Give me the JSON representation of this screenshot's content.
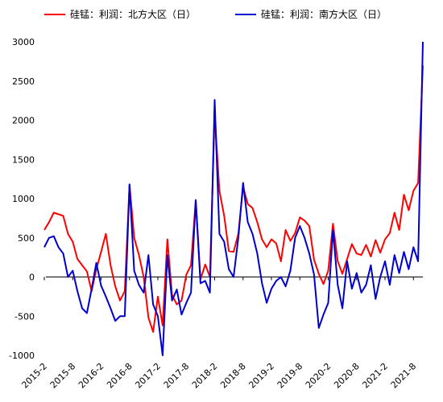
{
  "chart_data": {
    "type": "line",
    "title": "",
    "xlabel": "",
    "ylabel": "",
    "ylim": [
      -1000,
      3000
    ],
    "yticks": [
      -1000,
      -500,
      0,
      500,
      1000,
      1500,
      2000,
      2500,
      3000
    ],
    "xlim": [
      "2015-02",
      "2021-10"
    ],
    "xticks": [
      "2015-2",
      "2015-8",
      "2016-2",
      "2016-8",
      "2017-2",
      "2017-8",
      "2018-2",
      "2018-8",
      "2019-2",
      "2019-8",
      "2020-2",
      "2020-8",
      "2021-2",
      "2021-8"
    ],
    "grid": false,
    "legend_position": "top",
    "series": [
      {
        "name": "硅锰：利润：北方大区（日）",
        "color": "#ff0000",
        "points": [
          [
            "2015-02",
            600
          ],
          [
            "2015-03",
            700
          ],
          [
            "2015-04",
            820
          ],
          [
            "2015-05",
            800
          ],
          [
            "2015-06",
            780
          ],
          [
            "2015-07",
            550
          ],
          [
            "2015-08",
            450
          ],
          [
            "2015-09",
            230
          ],
          [
            "2015-10",
            150
          ],
          [
            "2015-11",
            70
          ],
          [
            "2015-12",
            -180
          ],
          [
            "2016-01",
            100
          ],
          [
            "2016-02",
            320
          ],
          [
            "2016-03",
            550
          ],
          [
            "2016-04",
            150
          ],
          [
            "2016-05",
            -120
          ],
          [
            "2016-06",
            -300
          ],
          [
            "2016-07",
            -180
          ],
          [
            "2016-08",
            1180
          ],
          [
            "2016-09",
            500
          ],
          [
            "2016-10",
            280
          ],
          [
            "2016-11",
            0
          ],
          [
            "2016-12",
            -520
          ],
          [
            "2017-01",
            -700
          ],
          [
            "2017-02",
            -250
          ],
          [
            "2017-03",
            -620
          ],
          [
            "2017-04",
            480
          ],
          [
            "2017-05",
            -230
          ],
          [
            "2017-06",
            -350
          ],
          [
            "2017-07",
            -300
          ],
          [
            "2017-08",
            30
          ],
          [
            "2017-09",
            150
          ],
          [
            "2017-10",
            980
          ],
          [
            "2017-11",
            -30
          ],
          [
            "2017-12",
            160
          ],
          [
            "2018-01",
            0
          ],
          [
            "2018-02",
            2080
          ],
          [
            "2018-03",
            1100
          ],
          [
            "2018-04",
            780
          ],
          [
            "2018-05",
            330
          ],
          [
            "2018-06",
            320
          ],
          [
            "2018-07",
            550
          ],
          [
            "2018-08",
            1150
          ],
          [
            "2018-09",
            930
          ],
          [
            "2018-10",
            880
          ],
          [
            "2018-11",
            700
          ],
          [
            "2018-12",
            480
          ],
          [
            "2019-01",
            380
          ],
          [
            "2019-02",
            480
          ],
          [
            "2019-03",
            430
          ],
          [
            "2019-04",
            200
          ],
          [
            "2019-05",
            600
          ],
          [
            "2019-06",
            460
          ],
          [
            "2019-07",
            560
          ],
          [
            "2019-08",
            760
          ],
          [
            "2019-09",
            720
          ],
          [
            "2019-10",
            650
          ],
          [
            "2019-11",
            220
          ],
          [
            "2019-12",
            40
          ],
          [
            "2020-01",
            -90
          ],
          [
            "2020-02",
            80
          ],
          [
            "2020-03",
            680
          ],
          [
            "2020-04",
            200
          ],
          [
            "2020-05",
            40
          ],
          [
            "2020-06",
            230
          ],
          [
            "2020-07",
            420
          ],
          [
            "2020-08",
            300
          ],
          [
            "2020-09",
            280
          ],
          [
            "2020-10",
            410
          ],
          [
            "2020-11",
            260
          ],
          [
            "2020-12",
            470
          ],
          [
            "2021-01",
            310
          ],
          [
            "2021-02",
            480
          ],
          [
            "2021-03",
            560
          ],
          [
            "2021-04",
            820
          ],
          [
            "2021-05",
            600
          ],
          [
            "2021-06",
            1050
          ],
          [
            "2021-07",
            850
          ],
          [
            "2021-08",
            1100
          ],
          [
            "2021-09",
            1200
          ],
          [
            "2021-10",
            2700
          ]
        ]
      },
      {
        "name": "硅锰：利润：南方大区（日）",
        "color": "#0000cc",
        "points": [
          [
            "2015-02",
            380
          ],
          [
            "2015-03",
            500
          ],
          [
            "2015-04",
            520
          ],
          [
            "2015-05",
            380
          ],
          [
            "2015-06",
            300
          ],
          [
            "2015-07",
            0
          ],
          [
            "2015-08",
            80
          ],
          [
            "2015-09",
            -180
          ],
          [
            "2015-10",
            -400
          ],
          [
            "2015-11",
            -460
          ],
          [
            "2015-12",
            -150
          ],
          [
            "2016-01",
            180
          ],
          [
            "2016-02",
            -110
          ],
          [
            "2016-03",
            -250
          ],
          [
            "2016-04",
            -400
          ],
          [
            "2016-05",
            -560
          ],
          [
            "2016-06",
            -500
          ],
          [
            "2016-07",
            -500
          ],
          [
            "2016-08",
            1180
          ],
          [
            "2016-09",
            80
          ],
          [
            "2016-10",
            -100
          ],
          [
            "2016-11",
            -200
          ],
          [
            "2016-12",
            280
          ],
          [
            "2017-01",
            -350
          ],
          [
            "2017-02",
            -500
          ],
          [
            "2017-03",
            -1000
          ],
          [
            "2017-04",
            280
          ],
          [
            "2017-05",
            -300
          ],
          [
            "2017-06",
            -160
          ],
          [
            "2017-07",
            -480
          ],
          [
            "2017-08",
            -330
          ],
          [
            "2017-09",
            -200
          ],
          [
            "2017-10",
            980
          ],
          [
            "2017-11",
            -80
          ],
          [
            "2017-12",
            -50
          ],
          [
            "2018-01",
            -200
          ],
          [
            "2018-02",
            2260
          ],
          [
            "2018-03",
            550
          ],
          [
            "2018-04",
            450
          ],
          [
            "2018-05",
            100
          ],
          [
            "2018-06",
            0
          ],
          [
            "2018-07",
            500
          ],
          [
            "2018-08",
            1200
          ],
          [
            "2018-09",
            700
          ],
          [
            "2018-10",
            550
          ],
          [
            "2018-11",
            300
          ],
          [
            "2018-12",
            -80
          ],
          [
            "2019-01",
            -330
          ],
          [
            "2019-02",
            -150
          ],
          [
            "2019-03",
            -50
          ],
          [
            "2019-04",
            0
          ],
          [
            "2019-05",
            -120
          ],
          [
            "2019-06",
            80
          ],
          [
            "2019-07",
            500
          ],
          [
            "2019-08",
            650
          ],
          [
            "2019-09",
            500
          ],
          [
            "2019-10",
            300
          ],
          [
            "2019-11",
            30
          ],
          [
            "2019-12",
            -650
          ],
          [
            "2020-01",
            -480
          ],
          [
            "2020-02",
            -330
          ],
          [
            "2020-03",
            600
          ],
          [
            "2020-04",
            -100
          ],
          [
            "2020-05",
            -400
          ],
          [
            "2020-06",
            200
          ],
          [
            "2020-07",
            -150
          ],
          [
            "2020-08",
            50
          ],
          [
            "2020-09",
            -200
          ],
          [
            "2020-10",
            -100
          ],
          [
            "2020-11",
            150
          ],
          [
            "2020-12",
            -280
          ],
          [
            "2021-01",
            0
          ],
          [
            "2021-02",
            200
          ],
          [
            "2021-03",
            -100
          ],
          [
            "2021-04",
            280
          ],
          [
            "2021-05",
            50
          ],
          [
            "2021-06",
            320
          ],
          [
            "2021-07",
            100
          ],
          [
            "2021-08",
            380
          ],
          [
            "2021-09",
            200
          ],
          [
            "2021-10",
            3000
          ]
        ]
      }
    ]
  }
}
